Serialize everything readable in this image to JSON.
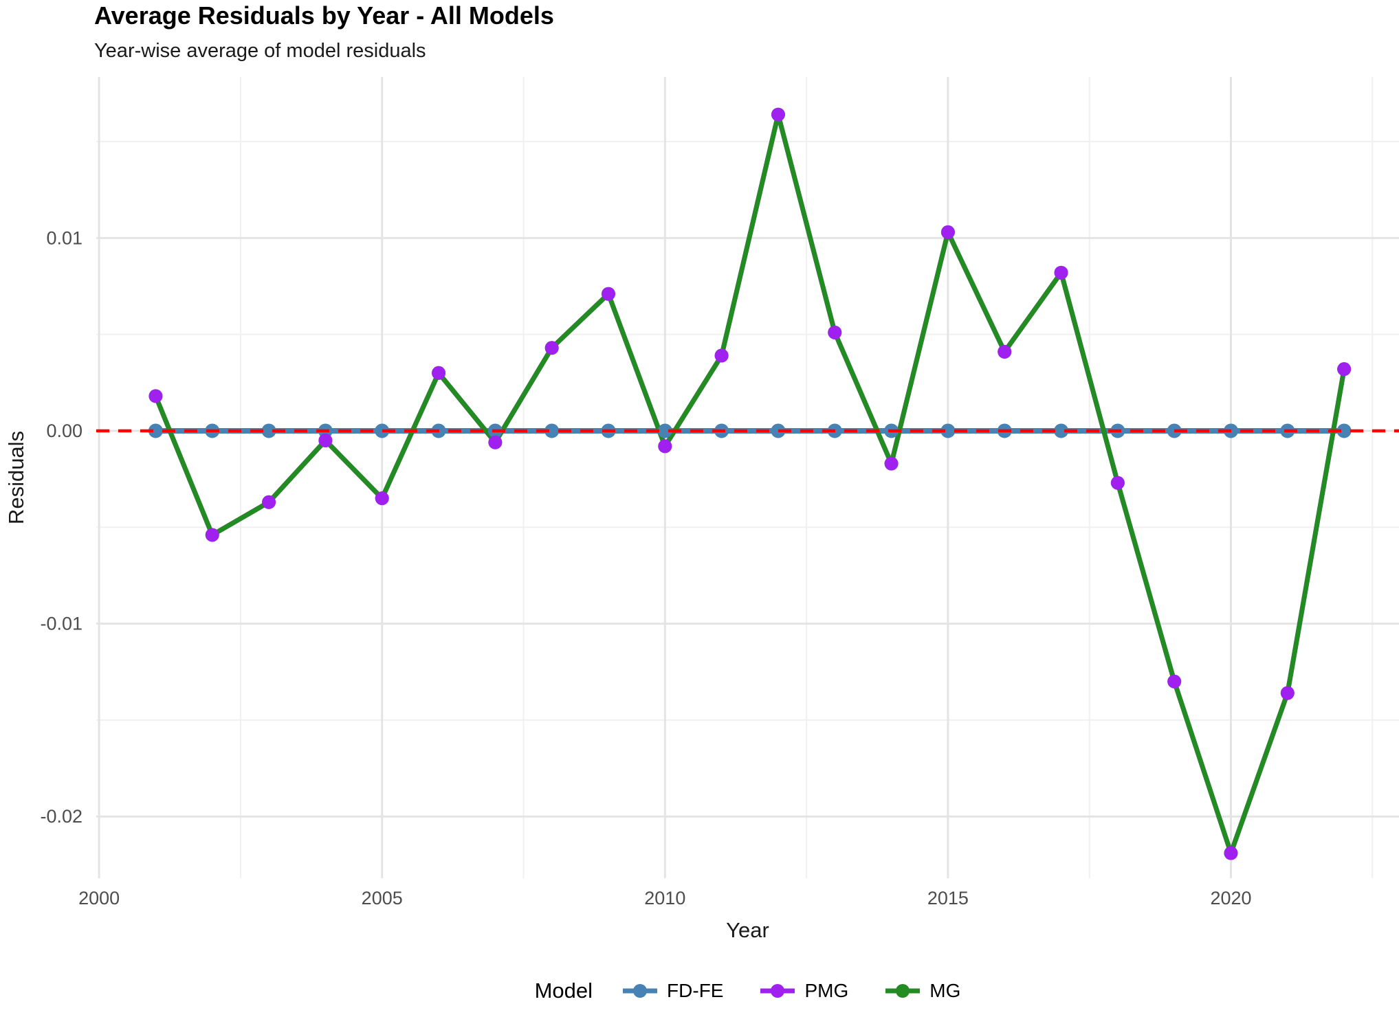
{
  "header": {
    "title": "Average Residuals by Year - All Models",
    "subtitle": "Year-wise average of model residuals"
  },
  "chart_data": {
    "type": "line",
    "x_label": "Year",
    "y_label": "Residuals",
    "x": [
      2001,
      2002,
      2003,
      2004,
      2005,
      2006,
      2007,
      2008,
      2009,
      2010,
      2011,
      2012,
      2013,
      2014,
      2015,
      2016,
      2017,
      2018,
      2019,
      2020,
      2021,
      2022
    ],
    "series": [
      {
        "name": "FD-FE",
        "color": "#4682B4",
        "values": [
          0,
          0,
          0,
          0,
          0,
          0,
          0,
          0,
          0,
          0,
          0,
          0,
          0,
          0,
          0,
          0,
          0,
          0,
          0,
          0,
          0,
          0
        ]
      },
      {
        "name": "PMG",
        "color": "#A020F0",
        "values": [
          0.0018,
          -0.0054,
          -0.0037,
          -0.0005,
          -0.0035,
          0.003,
          -0.0006,
          0.0043,
          0.0071,
          -0.0008,
          0.0039,
          0.0164,
          0.0051,
          -0.0017,
          0.0103,
          0.0041,
          0.0082,
          -0.0027,
          -0.013,
          -0.0219,
          -0.0136,
          0.0032
        ]
      },
      {
        "name": "MG",
        "color": "#228B22",
        "values": [
          0.0018,
          -0.0054,
          -0.0037,
          -0.0005,
          -0.0035,
          0.003,
          -0.0006,
          0.0043,
          0.0071,
          -0.0008,
          0.0039,
          0.0164,
          0.0051,
          -0.0017,
          0.0103,
          0.0041,
          0.0082,
          -0.0027,
          -0.013,
          -0.0219,
          -0.0136,
          0.0032
        ]
      }
    ],
    "reference_line": {
      "y": 0,
      "color": "#FF0000",
      "style": "dashed"
    },
    "axes": {
      "x_major_ticks": [
        2000,
        2005,
        2010,
        2015,
        2020
      ],
      "x_tick_labels": [
        "2000",
        "2005",
        "2010",
        "2015",
        "2020"
      ],
      "x_minor_ticks": [
        2002.5,
        2007.5,
        2012.5,
        2017.5,
        2022.5
      ],
      "y_major_ticks": [
        0.01,
        0,
        -0.01,
        -0.02
      ],
      "y_tick_labels": [
        "0.01",
        "0.00",
        "-0.01",
        "-0.02"
      ],
      "y_minor_ticks": [
        0.015,
        0.005,
        -0.005,
        -0.015
      ],
      "xlim": [
        1999.95,
        2022.97
      ],
      "ylim": [
        -0.0232,
        0.01835
      ]
    },
    "legend": {
      "title": "Model",
      "position": "bottom"
    },
    "grid": true
  },
  "colors": {
    "background": "#ffffff",
    "grid_major": "#e4e4e4",
    "grid_minor": "#f0f0f0",
    "tick_label": "#4d4d4d",
    "axis_title": "#1a1a1a"
  }
}
